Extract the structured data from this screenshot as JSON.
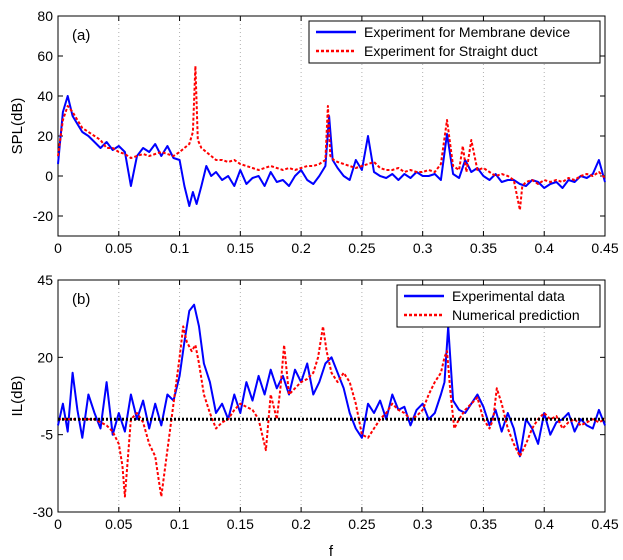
{
  "chart_data": [
    {
      "type": "line",
      "panel_label": "(a)",
      "xlabel": "",
      "ylabel": "SPL(dB)",
      "xlim": [
        0,
        0.45
      ],
      "ylim": [
        -30,
        80
      ],
      "xticks": [
        "0",
        "0.05",
        "0.1",
        "0.15",
        "0.2",
        "0.25",
        "0.3",
        "0.35",
        "0.4",
        "0.45"
      ],
      "yticks": [
        "-20",
        "0",
        "20",
        "40",
        "60",
        "80"
      ],
      "grid": "vertical dotted",
      "legend_position": "top-right",
      "series": [
        {
          "name": "Experiment for Membrane device",
          "color": "#0000ff",
          "dash": "solid",
          "x": [
            0,
            0.004,
            0.008,
            0.012,
            0.016,
            0.02,
            0.025,
            0.03,
            0.035,
            0.04,
            0.045,
            0.05,
            0.055,
            0.06,
            0.065,
            0.07,
            0.075,
            0.08,
            0.085,
            0.09,
            0.095,
            0.1,
            0.104,
            0.108,
            0.111,
            0.114,
            0.118,
            0.122,
            0.126,
            0.13,
            0.135,
            0.14,
            0.145,
            0.15,
            0.155,
            0.16,
            0.165,
            0.17,
            0.175,
            0.18,
            0.185,
            0.19,
            0.195,
            0.2,
            0.205,
            0.21,
            0.215,
            0.22,
            0.223,
            0.226,
            0.23,
            0.235,
            0.24,
            0.245,
            0.25,
            0.255,
            0.26,
            0.265,
            0.27,
            0.275,
            0.28,
            0.285,
            0.29,
            0.295,
            0.3,
            0.305,
            0.31,
            0.315,
            0.32,
            0.325,
            0.33,
            0.335,
            0.34,
            0.345,
            0.35,
            0.355,
            0.36,
            0.365,
            0.37,
            0.375,
            0.38,
            0.385,
            0.39,
            0.395,
            0.4,
            0.405,
            0.41,
            0.415,
            0.42,
            0.425,
            0.43,
            0.435,
            0.44,
            0.445,
            0.45
          ],
          "y": [
            6,
            32,
            40,
            30,
            26,
            22,
            20,
            17,
            14,
            17,
            13,
            15,
            12,
            -5,
            10,
            14,
            12,
            16,
            10,
            15,
            9,
            8,
            -5,
            -15,
            -8,
            -14,
            -5,
            5,
            0,
            2,
            -2,
            0,
            -5,
            3,
            -4,
            -1,
            0,
            -5,
            2,
            -3,
            -2,
            -5,
            0,
            3,
            -2,
            -4,
            0,
            5,
            30,
            8,
            4,
            0,
            -2,
            8,
            3,
            20,
            2,
            0,
            -1,
            1,
            -2,
            1,
            -1,
            2,
            0,
            0,
            1,
            -2,
            21,
            1,
            -1,
            8,
            2,
            4,
            0,
            -2,
            1,
            -3,
            -2,
            -2,
            -4,
            -5,
            -2,
            -3,
            -6,
            -4,
            -3,
            -6,
            -2,
            -3,
            0,
            -1,
            1,
            8,
            -3
          ]
        },
        {
          "name": "Experiment for Straight duct",
          "color": "#ff0000",
          "dash": "dashed",
          "x": [
            0,
            0.004,
            0.008,
            0.012,
            0.016,
            0.02,
            0.025,
            0.03,
            0.035,
            0.04,
            0.045,
            0.05,
            0.055,
            0.06,
            0.065,
            0.07,
            0.075,
            0.08,
            0.085,
            0.09,
            0.095,
            0.1,
            0.104,
            0.108,
            0.111,
            0.113,
            0.115,
            0.118,
            0.122,
            0.126,
            0.13,
            0.135,
            0.14,
            0.145,
            0.15,
            0.155,
            0.16,
            0.165,
            0.17,
            0.175,
            0.18,
            0.185,
            0.19,
            0.195,
            0.2,
            0.205,
            0.21,
            0.215,
            0.22,
            0.222,
            0.224,
            0.227,
            0.23,
            0.235,
            0.24,
            0.245,
            0.25,
            0.255,
            0.26,
            0.265,
            0.27,
            0.275,
            0.28,
            0.285,
            0.29,
            0.295,
            0.3,
            0.305,
            0.31,
            0.315,
            0.32,
            0.325,
            0.33,
            0.333,
            0.336,
            0.34,
            0.345,
            0.35,
            0.355,
            0.36,
            0.365,
            0.37,
            0.375,
            0.38,
            0.382,
            0.385,
            0.39,
            0.395,
            0.4,
            0.405,
            0.41,
            0.415,
            0.42,
            0.425,
            0.43,
            0.435,
            0.44,
            0.445,
            0.45
          ],
          "y": [
            10,
            28,
            35,
            32,
            28,
            24,
            22,
            20,
            18,
            14,
            14,
            12,
            11,
            9,
            10,
            11,
            10,
            11,
            12,
            11,
            10,
            12,
            14,
            16,
            22,
            55,
            18,
            14,
            12,
            10,
            8,
            8,
            7,
            8,
            6,
            5,
            4,
            3,
            4,
            5,
            4,
            3,
            4,
            3,
            4,
            5,
            5,
            6,
            8,
            35,
            10,
            8,
            7,
            6,
            5,
            4,
            5,
            6,
            7,
            4,
            3,
            3,
            4,
            2,
            3,
            2,
            2,
            3,
            2,
            6,
            28,
            5,
            3,
            15,
            2,
            18,
            3,
            4,
            2,
            0,
            1,
            0,
            -2,
            -17,
            -5,
            -3,
            -2,
            -4,
            -2,
            -3,
            -2,
            -3,
            -1,
            -2,
            0,
            1,
            0,
            2,
            -1
          ]
        }
      ]
    },
    {
      "type": "line",
      "panel_label": "(b)",
      "xlabel": "f",
      "ylabel": "IL(dB)",
      "xlim": [
        0,
        0.45
      ],
      "ylim": [
        -30,
        45
      ],
      "xticks": [
        "0",
        "0.05",
        "0.1",
        "0.15",
        "0.2",
        "0.25",
        "0.3",
        "0.35",
        "0.4",
        "0.45"
      ],
      "yticks": [
        "-30",
        "-5",
        "20",
        "45"
      ],
      "grid": "vertical dotted",
      "legend_position": "top-right",
      "series": [
        {
          "name": "Experimental data",
          "color": "#0000ff",
          "dash": "solid",
          "x": [
            0,
            0.004,
            0.008,
            0.012,
            0.016,
            0.02,
            0.025,
            0.03,
            0.035,
            0.04,
            0.045,
            0.05,
            0.055,
            0.06,
            0.065,
            0.07,
            0.075,
            0.08,
            0.085,
            0.09,
            0.095,
            0.1,
            0.104,
            0.108,
            0.112,
            0.116,
            0.12,
            0.125,
            0.13,
            0.135,
            0.14,
            0.145,
            0.15,
            0.155,
            0.16,
            0.165,
            0.17,
            0.175,
            0.18,
            0.185,
            0.19,
            0.195,
            0.2,
            0.205,
            0.21,
            0.215,
            0.22,
            0.225,
            0.23,
            0.235,
            0.24,
            0.245,
            0.25,
            0.255,
            0.26,
            0.265,
            0.27,
            0.275,
            0.28,
            0.285,
            0.29,
            0.295,
            0.3,
            0.305,
            0.31,
            0.315,
            0.318,
            0.321,
            0.325,
            0.33,
            0.335,
            0.34,
            0.345,
            0.35,
            0.355,
            0.36,
            0.365,
            0.37,
            0.375,
            0.38,
            0.385,
            0.39,
            0.395,
            0.4,
            0.405,
            0.41,
            0.415,
            0.42,
            0.425,
            0.43,
            0.435,
            0.44,
            0.445,
            0.45
          ],
          "y": [
            -2,
            5,
            -4,
            15,
            3,
            -6,
            8,
            2,
            -3,
            12,
            -5,
            2,
            -4,
            8,
            0,
            6,
            -3,
            5,
            -2,
            8,
            6,
            14,
            25,
            35,
            37,
            30,
            18,
            12,
            2,
            5,
            0,
            8,
            2,
            12,
            6,
            14,
            8,
            16,
            10,
            14,
            8,
            16,
            12,
            18,
            8,
            12,
            18,
            20,
            15,
            10,
            2,
            -3,
            -6,
            5,
            2,
            6,
            0,
            8,
            3,
            4,
            -2,
            3,
            5,
            0,
            2,
            8,
            12,
            30,
            6,
            3,
            2,
            5,
            8,
            4,
            -2,
            3,
            -4,
            2,
            -3,
            -12,
            0,
            -3,
            -8,
            2,
            -5,
            -1,
            0,
            2,
            -4,
            0,
            -2,
            -3,
            3,
            -2
          ]
        },
        {
          "name": "Numerical prediction",
          "color": "#ff0000",
          "dash": "dashed",
          "x": [
            0,
            0.01,
            0.02,
            0.03,
            0.04,
            0.045,
            0.05,
            0.053,
            0.055,
            0.058,
            0.06,
            0.065,
            0.07,
            0.075,
            0.08,
            0.083,
            0.085,
            0.09,
            0.095,
            0.1,
            0.103,
            0.106,
            0.11,
            0.113,
            0.116,
            0.12,
            0.125,
            0.13,
            0.135,
            0.14,
            0.145,
            0.15,
            0.155,
            0.16,
            0.165,
            0.168,
            0.171,
            0.175,
            0.18,
            0.183,
            0.186,
            0.19,
            0.195,
            0.2,
            0.205,
            0.21,
            0.214,
            0.218,
            0.221,
            0.225,
            0.23,
            0.235,
            0.24,
            0.245,
            0.25,
            0.255,
            0.26,
            0.265,
            0.27,
            0.275,
            0.28,
            0.285,
            0.29,
            0.295,
            0.3,
            0.305,
            0.31,
            0.315,
            0.318,
            0.32,
            0.323,
            0.326,
            0.33,
            0.335,
            0.34,
            0.345,
            0.35,
            0.355,
            0.358,
            0.361,
            0.365,
            0.37,
            0.375,
            0.38,
            0.385,
            0.39,
            0.395,
            0.4,
            0.405,
            0.41,
            0.415,
            0.42,
            0.425,
            0.43,
            0.435,
            0.44,
            0.445,
            0.45
          ],
          "y": [
            0,
            0,
            0,
            0,
            -2,
            -4,
            -8,
            -15,
            -25,
            -10,
            0,
            2,
            -1,
            -8,
            -12,
            -20,
            -25,
            -10,
            5,
            20,
            30,
            25,
            22,
            24,
            18,
            8,
            2,
            -3,
            -1,
            0,
            3,
            5,
            4,
            3,
            0,
            -5,
            -10,
            8,
            0,
            10,
            24,
            8,
            10,
            12,
            13,
            15,
            20,
            30,
            22,
            15,
            12,
            15,
            12,
            5,
            -5,
            -6,
            -3,
            0,
            2,
            5,
            3,
            2,
            0,
            1,
            3,
            8,
            12,
            15,
            20,
            22,
            8,
            -3,
            0,
            3,
            5,
            7,
            0,
            -3,
            0,
            10,
            5,
            -3,
            -8,
            -12,
            -8,
            -3,
            0,
            2,
            0,
            1,
            -3,
            -1,
            0,
            -2,
            -1,
            0,
            -1,
            0
          ]
        }
      ],
      "reference_line": {
        "y": 0,
        "color": "#000000",
        "style": "dotted"
      }
    }
  ]
}
